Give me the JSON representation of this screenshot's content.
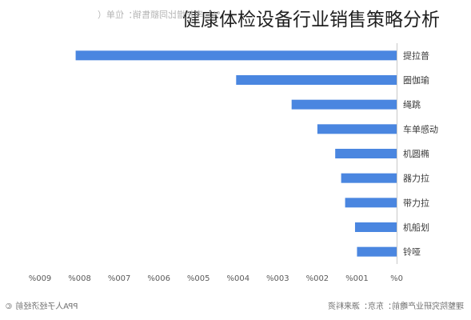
{
  "title": "健康体检设备行业销售策略分析",
  "subtitle": "%）率长增比同额售销：位单（",
  "footer": {
    "left": "PPA人子经济经前 ©",
    "right": "理整院究研业产瞻前：东京：源来料资"
  },
  "colors": {
    "bar": "#4a86e0",
    "axis": "#c8c8c8",
    "text": "#3a3a3a"
  },
  "chart_data": {
    "type": "bar",
    "orientation": "horizontal",
    "x_direction": "reversed",
    "categories": [
      "普拉提",
      "瑜伽圈",
      "跳绳",
      "动感单车",
      "椭圆机",
      "拉力器",
      "拉力带",
      "划船机",
      "哑铃"
    ],
    "category_labels": [
      "提拉普",
      "圈伽瑜",
      "绳跳",
      "车单感动",
      "机圆椭",
      "器力拉",
      "带力拉",
      "机船划",
      "铃哑"
    ],
    "values": [
      810,
      405,
      265,
      200,
      155,
      140,
      130,
      105,
      100
    ],
    "xlim": [
      0,
      900
    ],
    "xticks": [
      0,
      100,
      200,
      300,
      400,
      500,
      600,
      700,
      800,
      900
    ],
    "xtick_labels": [
      "%0",
      "%001",
      "%002",
      "%003",
      "%004",
      "%005",
      "%006",
      "%007",
      "%008",
      "%009"
    ],
    "title": "健康体检设备行业销售策略分析",
    "xlabel": "",
    "ylabel": "",
    "grid": false,
    "legend": "none"
  }
}
